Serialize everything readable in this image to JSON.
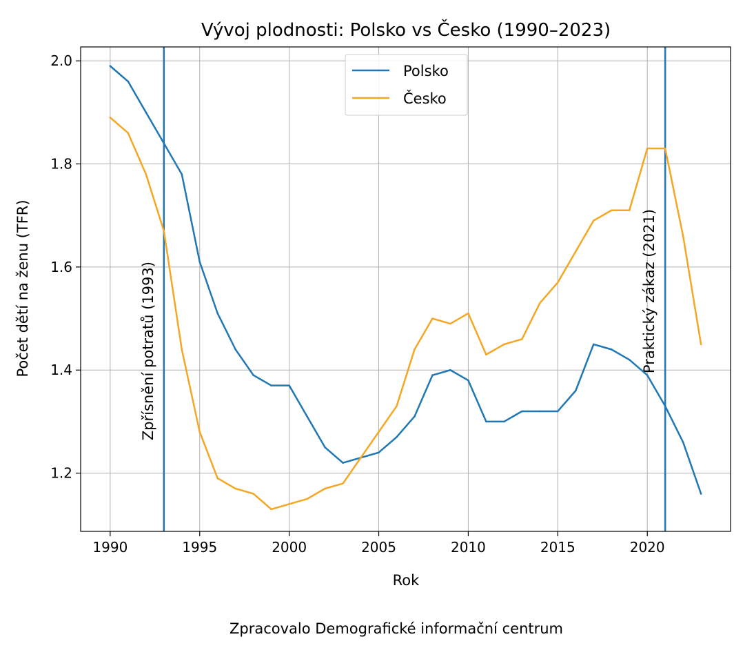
{
  "chart_data": {
    "type": "line",
    "title": "Vývoj plodnosti: Polsko vs Česko (1990–2023)",
    "xlabel": "Rok",
    "ylabel": "Počet dětí na ženu (TFR)",
    "footer": "Zpracovalo Demografické informační centrum",
    "xlim": [
      1988.35,
      2024.65
    ],
    "ylim": [
      1.087,
      2.027
    ],
    "x_ticks": [
      1990,
      1995,
      2000,
      2005,
      2010,
      2015,
      2020
    ],
    "y_ticks": [
      1.2,
      1.4,
      1.6,
      1.8,
      2.0
    ],
    "y_tick_labels": [
      "1.2",
      "1.4",
      "1.6",
      "1.8",
      "2.0"
    ],
    "grid": true,
    "legend_position": "upper center",
    "x": [
      1990,
      1991,
      1992,
      1993,
      1994,
      1995,
      1996,
      1997,
      1998,
      1999,
      2000,
      2001,
      2002,
      2003,
      2004,
      2005,
      2006,
      2007,
      2008,
      2009,
      2010,
      2011,
      2012,
      2013,
      2014,
      2015,
      2016,
      2017,
      2018,
      2019,
      2020,
      2021,
      2022,
      2023
    ],
    "series": [
      {
        "name": "Polsko",
        "color": "#1f77b4",
        "values": [
          1.99,
          1.96,
          1.9,
          1.84,
          1.78,
          1.61,
          1.51,
          1.44,
          1.39,
          1.37,
          1.37,
          1.31,
          1.25,
          1.22,
          1.23,
          1.24,
          1.27,
          1.31,
          1.39,
          1.4,
          1.38,
          1.3,
          1.3,
          1.32,
          1.32,
          1.32,
          1.36,
          1.45,
          1.44,
          1.42,
          1.39,
          1.33,
          1.26,
          1.16
        ]
      },
      {
        "name": "Česko",
        "color": "#f5a623",
        "values": [
          1.89,
          1.86,
          1.78,
          1.67,
          1.44,
          1.28,
          1.19,
          1.17,
          1.16,
          1.13,
          1.14,
          1.15,
          1.17,
          1.18,
          1.23,
          1.28,
          1.33,
          1.44,
          1.5,
          1.49,
          1.51,
          1.43,
          1.45,
          1.46,
          1.53,
          1.57,
          1.63,
          1.69,
          1.71,
          1.71,
          1.83,
          1.83,
          1.66,
          1.45
        ]
      }
    ],
    "annotations": [
      {
        "x": 1993,
        "label": "Zpřísnění potratů (1993)",
        "color": "#1f77b4",
        "label_y": 1.437
      },
      {
        "x": 2021,
        "label": "Praktický zákaz (2021)",
        "color": "#1f77b4",
        "label_y": 1.553
      }
    ]
  }
}
